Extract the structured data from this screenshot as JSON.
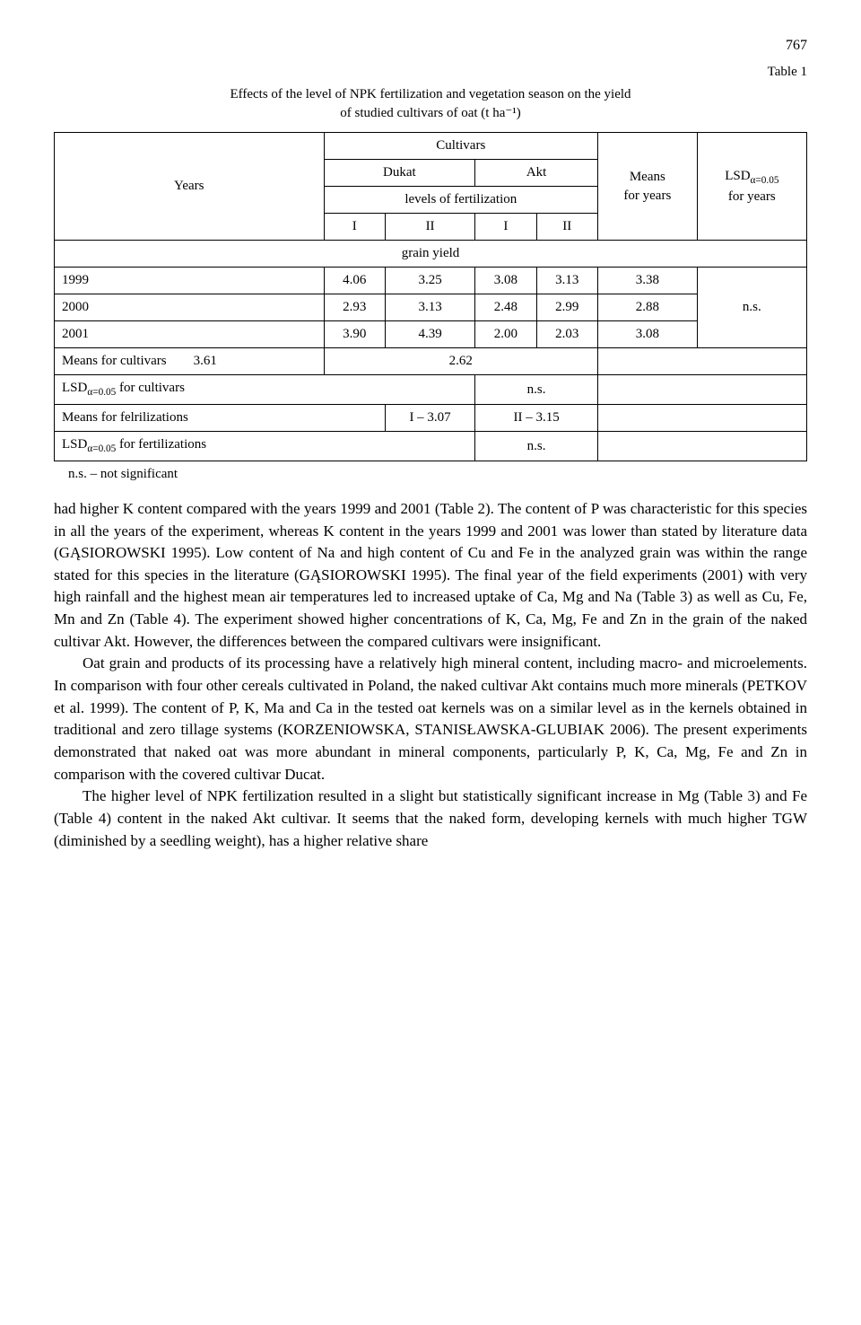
{
  "page_number": "767",
  "table": {
    "label": "Table 1",
    "title_line1": "Effects of the level of NPK fertilization and vegetation season on the yield",
    "title_line2": "of studied cultivars of oat (t ha⁻¹)",
    "headers": {
      "years": "Years",
      "cultivars": "Cultivars",
      "dukat": "Dukat",
      "akt": "Akt",
      "levels": "levels of fertilization",
      "I": "I",
      "II": "II",
      "means_years": "Means\nfor years",
      "lsd_years": "LSD",
      "lsd_years_sub": "α=0.05",
      "lsd_years_suffix": "for years",
      "grain_yield": "grain yield"
    },
    "rows": [
      {
        "year": "1999",
        "d1": "4.06",
        "d2": "3.25",
        "a1": "3.08",
        "a2": "3.13",
        "mean": "3.38"
      },
      {
        "year": "2000",
        "d1": "2.93",
        "d2": "3.13",
        "a1": "2.48",
        "a2": "2.99",
        "mean": "2.88"
      },
      {
        "year": "2001",
        "d1": "3.90",
        "d2": "4.39",
        "a1": "2.00",
        "a2": "2.03",
        "mean": "3.08"
      }
    ],
    "lsd_value": "n.s.",
    "means_cultivars_label": "Means for cultivars",
    "means_cultivars_d": "3.61",
    "means_cultivars_a": "2.62",
    "lsd_cultivars_label": "LSD",
    "lsd_cultivars_sub": "α=0.05",
    "lsd_cultivars_suffix": " for cultivars",
    "lsd_cultivars_val": "n.s.",
    "means_fert_label": "Means for felrilizations",
    "means_fert_I": "I – 3.07",
    "means_fert_II": "II – 3.15",
    "lsd_fert_label": "LSD",
    "lsd_fert_sub": "α=0.05",
    "lsd_fert_suffix": " for fertilizations",
    "lsd_fert_val": "n.s.",
    "footnote": "n.s. – not significant"
  },
  "paragraphs": {
    "p1": "had higher K content compared with the years 1999 and 2001 (Table 2). The content of P was characteristic for this species in all the years of the experiment, whereas K content in the years 1999 and 2001 was lower than stated by literature data (GĄSIOROWSKI 1995). Low content of Na and high content of Cu and Fe in the analyzed grain was within the range stated for this species in the literature (GĄSIOROWSKI 1995). The final year of the field experiments (2001) with very high rainfall and the highest mean air temperatures led to increased uptake of Ca, Mg and Na (Table 3) as well as Cu, Fe, Mn and Zn (Table 4). The experiment showed higher concentrations of K, Ca, Mg, Fe and Zn in the grain of the naked cultivar Akt. However, the differences between the compared cultivars were insignificant.",
    "p2": "Oat grain and products of its processing have a relatively high mineral content, including macro- and microelements. In comparison with four other cereals cultivated in Poland, the naked cultivar Akt contains much more minerals (PETKOV et al. 1999). The content of P, K, Ma and Ca in the tested oat kernels was on a similar level as in the kernels obtained in traditional and zero tillage systems (KORZENIOWSKA, STANISŁAWSKA-GLUBIAK 2006). The present experiments demonstrated that naked oat was more abundant in mineral components, particularly P, K, Ca, Mg, Fe and Zn in comparison with the covered cultivar Ducat.",
    "p3": "The higher level of NPK fertilization resulted in a slight but statistically significant increase in Mg (Table 3) and Fe (Table 4) content in the naked Akt cultivar. It seems that the naked form, developing kernels with much higher TGW (diminished by a seedling weight), has a higher relative share"
  }
}
